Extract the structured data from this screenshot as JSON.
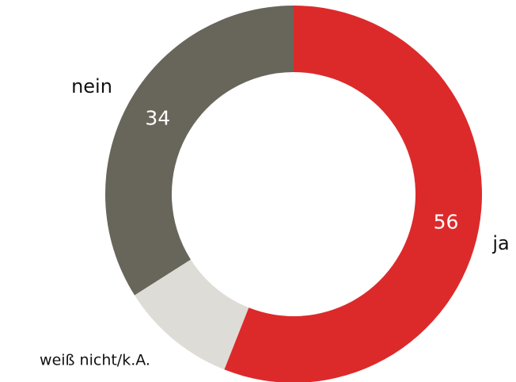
{
  "chart_data": {
    "type": "donut",
    "categories": [
      "ja",
      "weiß nicht/k.A.",
      "nein"
    ],
    "values": [
      56,
      10,
      34
    ],
    "colors": [
      "#dc2a2b",
      "#dddcd6",
      "#68665a"
    ],
    "value_label_shown": [
      true,
      false,
      true
    ]
  }
}
